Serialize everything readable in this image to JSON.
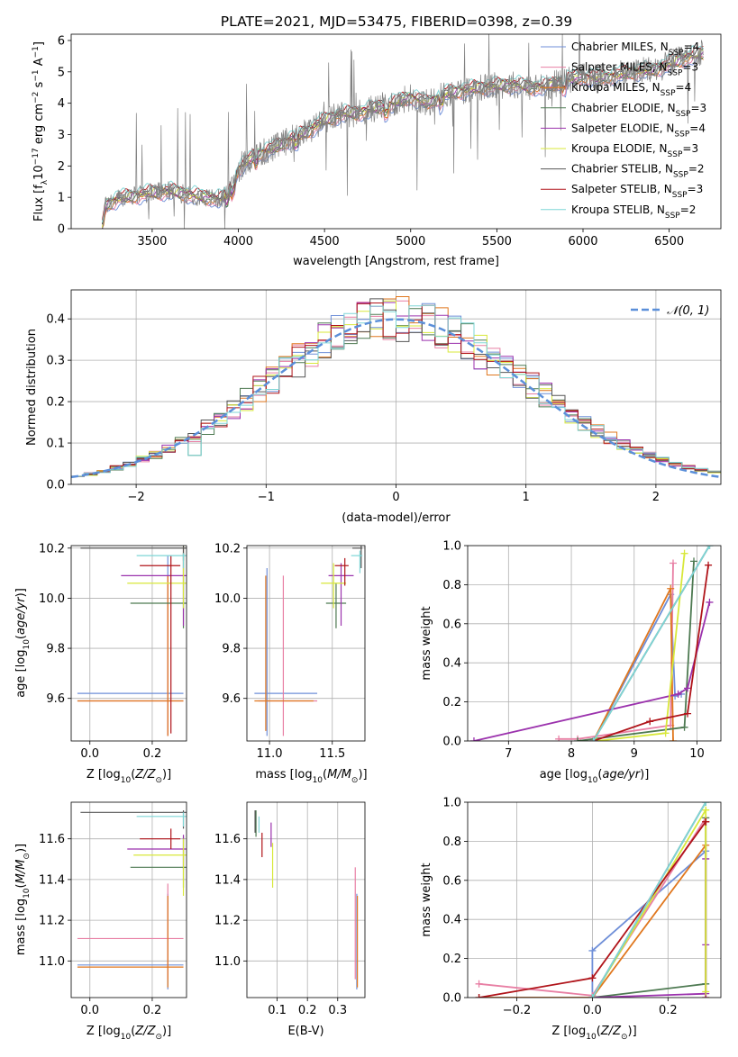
{
  "figure": {
    "title": "PLATE=2021, MJD=53475, FIBERID=0398, z=0.39"
  },
  "palette": {
    "Chabrier MILES": "#6f8fd8",
    "Salpeter MILES": "#e87fa4",
    "Kroupa MILES": "#e0771e",
    "Chabrier ELODIE": "#4e7a52",
    "Salpeter ELODIE": "#9b32ad",
    "Kroupa ELODIE": "#d8e83a",
    "Chabrier STELIB": "#555555",
    "Salpeter STELIB": "#b0141a",
    "Kroupa STELIB": "#7ed6d6"
  },
  "legend": {
    "spectrum": [
      {
        "series": "Chabrier MILES",
        "text": "Chabrier MILES, N",
        "sub": "SSP",
        "tail": "=4"
      },
      {
        "series": "Salpeter MILES",
        "text": "Salpeter MILES, N",
        "sub": "SSP",
        "tail": "=3"
      },
      {
        "series": "Kroupa MILES",
        "text": "Kroupa MILES, N",
        "sub": "SSP",
        "tail": "=4"
      },
      {
        "series": "Chabrier ELODIE",
        "text": "Chabrier ELODIE, N",
        "sub": "SSP",
        "tail": "=3"
      },
      {
        "series": "Salpeter ELODIE",
        "text": "Salpeter ELODIE, N",
        "sub": "SSP",
        "tail": "=4"
      },
      {
        "series": "Kroupa ELODIE",
        "text": "Kroupa ELODIE, N",
        "sub": "SSP",
        "tail": "=3"
      },
      {
        "series": "Chabrier STELIB",
        "text": "Chabrier STELIB, N",
        "sub": "SSP",
        "tail": "=2"
      },
      {
        "series": "Salpeter STELIB",
        "text": "Salpeter STELIB, N",
        "sub": "SSP",
        "tail": "=3"
      },
      {
        "series": "Kroupa STELIB",
        "text": "Kroupa STELIB, N",
        "sub": "SSP",
        "tail": "=2"
      }
    ],
    "hist": "𝒩(0, 1)"
  },
  "chart_data": [
    {
      "id": "spectrum",
      "type": "line",
      "xlabel": "wavelength [Angstrom, rest frame]",
      "ylabel": "Flux [f_λ 10^-17 erg cm^-2 s^-1 A^-1]",
      "xlim": [
        3030,
        6800
      ],
      "ylim": [
        0,
        6.2
      ],
      "xticks": [
        3500,
        4000,
        4500,
        5000,
        5500,
        6000,
        6500
      ],
      "yticks": [
        0,
        1,
        2,
        3,
        4,
        5,
        6
      ],
      "continuum": {
        "x": [
          3210,
          3230,
          3300,
          3400,
          3500,
          3600,
          3700,
          3800,
          3900,
          3950,
          4000,
          4100,
          4200,
          4300,
          4400,
          4500,
          4600,
          4700,
          4800,
          4900,
          5000,
          5100,
          5200,
          5300,
          5400,
          5500,
          5600,
          5700,
          5800,
          5900,
          6000,
          6100,
          6200,
          6300,
          6400,
          6500,
          6600,
          6700
        ],
        "y": [
          0,
          0.75,
          0.95,
          1.05,
          1.15,
          1.2,
          1.1,
          1.0,
          0.95,
          1.2,
          1.9,
          2.35,
          2.55,
          2.85,
          3.1,
          3.45,
          3.65,
          3.7,
          3.85,
          4.0,
          4.2,
          4.0,
          4.3,
          4.4,
          4.5,
          4.55,
          4.6,
          4.5,
          4.55,
          4.75,
          4.85,
          4.8,
          4.9,
          5.0,
          5.05,
          5.25,
          5.45,
          5.6
        ]
      },
      "data_start": 3210
    },
    {
      "id": "residual-hist",
      "type": "line",
      "xlabel": "(data-model)/error",
      "ylabel": "Normed distribution",
      "xlim": [
        -2.5,
        2.5
      ],
      "ylim": [
        0,
        0.47
      ],
      "xticks": [
        -2,
        -1,
        0,
        1,
        2
      ],
      "yticks": [
        0.0,
        0.1,
        0.2,
        0.3,
        0.4
      ],
      "bin_width": 0.1,
      "gaussian": {
        "mean": 0,
        "sigma": 1
      }
    },
    {
      "id": "age-vs-Z",
      "type": "scatter",
      "xlabel": "Z [log10(Z/Z☉)]",
      "ylabel": "age  [log10(age/yr)]",
      "xlim": [
        -0.06,
        0.31
      ],
      "ylim": [
        9.43,
        10.21
      ],
      "xticks": [
        0.0,
        0.2
      ],
      "yticks": [
        9.6,
        9.8,
        10.0,
        10.2
      ],
      "points": [
        {
          "series": "Chabrier MILES",
          "x": 0.25,
          "xerr": [
            0.29,
            0.05
          ],
          "y": 9.62,
          "yerr": [
            0.17,
            0.55
          ]
        },
        {
          "series": "Salpeter MILES",
          "x": 0.25,
          "xerr": [
            0.29,
            0.05
          ],
          "y": 9.59,
          "yerr": [
            0.14,
            0.5
          ]
        },
        {
          "series": "Kroupa MILES",
          "x": 0.25,
          "xerr": [
            0.29,
            0.05
          ],
          "y": 9.59,
          "yerr": [
            0.14,
            0.5
          ]
        },
        {
          "series": "Chabrier ELODIE",
          "x": 0.3,
          "xerr": [
            0.17,
            0.01
          ],
          "y": 9.98,
          "yerr": [
            0.1,
            0.2
          ]
        },
        {
          "series": "Salpeter ELODIE",
          "x": 0.3,
          "xerr": [
            0.2,
            0.01
          ],
          "y": 10.09,
          "yerr": [
            0.2,
            0.11
          ]
        },
        {
          "series": "Kroupa ELODIE",
          "x": 0.3,
          "xerr": [
            0.18,
            0.01
          ],
          "y": 10.06,
          "yerr": [
            0.1,
            0.15
          ]
        },
        {
          "series": "Chabrier STELIB",
          "x": 0.3,
          "xerr": [
            0.33,
            0.01
          ],
          "y": 10.2,
          "yerr": [
            0.05,
            0.01
          ]
        },
        {
          "series": "Salpeter STELIB",
          "x": 0.26,
          "xerr": [
            0.1,
            0.03
          ],
          "y": 10.13,
          "yerr": [
            0.67,
            0.04
          ]
        },
        {
          "series": "Kroupa STELIB",
          "x": 0.3,
          "xerr": [
            0.15,
            0.01
          ],
          "y": 10.17,
          "yerr": [
            0.05,
            0.01
          ]
        }
      ]
    },
    {
      "id": "age-vs-mass",
      "type": "scatter",
      "xlabel": "mass [log10(M/M☉)]",
      "ylabel": "",
      "xlim": [
        10.82,
        11.76
      ],
      "ylim": [
        9.43,
        10.21
      ],
      "xticks": [
        11.0,
        11.5
      ],
      "yticks": [
        9.6,
        9.8,
        10.0,
        10.2
      ],
      "points": [
        {
          "series": "Chabrier MILES",
          "x": 10.98,
          "xerr": [
            0.1,
            0.4
          ],
          "y": 9.62,
          "yerr": [
            0.17,
            0.5
          ]
        },
        {
          "series": "Salpeter MILES",
          "x": 11.11,
          "xerr": [
            0.2,
            0.27
          ],
          "y": 9.59,
          "yerr": [
            0.14,
            0.5
          ]
        },
        {
          "series": "Kroupa MILES",
          "x": 10.97,
          "xerr": [
            0.09,
            0.38
          ],
          "y": 9.59,
          "yerr": [
            0.12,
            0.5
          ]
        },
        {
          "series": "Chabrier ELODIE",
          "x": 11.53,
          "xerr": [
            0.08,
            0.08
          ],
          "y": 9.98,
          "yerr": [
            0.1,
            0.08
          ]
        },
        {
          "series": "Salpeter ELODIE",
          "x": 11.57,
          "xerr": [
            0.1,
            0.1
          ],
          "y": 10.09,
          "yerr": [
            0.2,
            0.05
          ]
        },
        {
          "series": "Kroupa ELODIE",
          "x": 11.51,
          "xerr": [
            0.1,
            0.1
          ],
          "y": 10.06,
          "yerr": [
            0.1,
            0.08
          ]
        },
        {
          "series": "Chabrier STELIB",
          "x": 11.73,
          "xerr": [
            0.07,
            0.01
          ],
          "y": 10.2,
          "yerr": [
            0.08,
            0.01
          ]
        },
        {
          "series": "Salpeter STELIB",
          "x": 11.6,
          "xerr": [
            0.08,
            0.03
          ],
          "y": 10.13,
          "yerr": [
            0.08,
            0.03
          ]
        },
        {
          "series": "Kroupa STELIB",
          "x": 11.72,
          "xerr": [
            0.07,
            0.02
          ],
          "y": 10.17,
          "yerr": [
            0.07,
            0.02
          ]
        }
      ]
    },
    {
      "id": "mass-weight-vs-age",
      "type": "line",
      "xlabel": "age  [log10(age/yr)]",
      "ylabel": "mass weight",
      "xlim": [
        6.35,
        10.38
      ],
      "ylim": [
        0,
        1
      ],
      "xticks": [
        7,
        8,
        9,
        10
      ],
      "yticks": [
        0.0,
        0.2,
        0.4,
        0.6,
        0.8,
        1.0
      ],
      "series": [
        {
          "name": "Chabrier MILES",
          "x": [
            8.35,
            9.58,
            9.65,
            9.75
          ],
          "y": [
            0.0,
            0.75,
            0.23,
            0.24
          ]
        },
        {
          "name": "Salpeter MILES",
          "x": [
            7.8,
            8.1,
            9.58,
            9.62
          ],
          "y": [
            0.01,
            0.01,
            0.08,
            0.91
          ]
        },
        {
          "name": "Kroupa MILES",
          "x": [
            8.35,
            9.58,
            9.62
          ],
          "y": [
            0.0,
            0.78,
            0.0
          ]
        },
        {
          "name": "Chabrier ELODIE",
          "x": [
            8.1,
            9.8,
            9.95
          ],
          "y": [
            0.0,
            0.07,
            0.92
          ]
        },
        {
          "name": "Salpeter ELODIE",
          "x": [
            6.45,
            9.7,
            9.85,
            10.2
          ],
          "y": [
            0.0,
            0.24,
            0.27,
            0.71
          ]
        },
        {
          "name": "Kroupa ELODIE",
          "x": [
            8.4,
            9.5,
            9.8
          ],
          "y": [
            0.0,
            0.04,
            0.96
          ]
        },
        {
          "name": "Chabrier STELIB",
          "x": [
            8.35,
            10.2
          ],
          "y": [
            0.0,
            1.0
          ]
        },
        {
          "name": "Salpeter STELIB",
          "x": [
            8.35,
            9.25,
            9.85,
            10.18
          ],
          "y": [
            0.0,
            0.1,
            0.14,
            0.9
          ]
        },
        {
          "name": "Kroupa STELIB",
          "x": [
            8.35,
            10.2
          ],
          "y": [
            0.0,
            1.0
          ]
        }
      ]
    },
    {
      "id": "mass-vs-Z",
      "type": "scatter",
      "xlabel": "Z [log10(Z/Z☉)]",
      "ylabel": "mass [log10(M/M☉)]",
      "xlim": [
        -0.06,
        0.31
      ],
      "ylim": [
        10.82,
        11.78
      ],
      "xticks": [
        0.0,
        0.2
      ],
      "yticks": [
        11.0,
        11.2,
        11.4,
        11.6
      ],
      "points": [
        {
          "series": "Chabrier MILES",
          "x": 0.25,
          "xerr": [
            0.29,
            0.05
          ],
          "y": 10.98,
          "yerr": [
            0.12,
            0.35
          ]
        },
        {
          "series": "Salpeter MILES",
          "x": 0.25,
          "xerr": [
            0.29,
            0.05
          ],
          "y": 11.11,
          "yerr": [
            0.2,
            0.27
          ]
        },
        {
          "series": "Kroupa MILES",
          "x": 0.25,
          "xerr": [
            0.29,
            0.05
          ],
          "y": 10.97,
          "yerr": [
            0.1,
            0.35
          ]
        },
        {
          "series": "Chabrier ELODIE",
          "x": 0.3,
          "xerr": [
            0.17,
            0.01
          ],
          "y": 11.46,
          "yerr": [
            0.1,
            0.15
          ]
        },
        {
          "series": "Salpeter ELODIE",
          "x": 0.3,
          "xerr": [
            0.18,
            0.01
          ],
          "y": 11.55,
          "yerr": [
            0.1,
            0.07
          ]
        },
        {
          "series": "Kroupa ELODIE",
          "x": 0.3,
          "xerr": [
            0.16,
            0.01
          ],
          "y": 11.52,
          "yerr": [
            0.2,
            0.08
          ]
        },
        {
          "series": "Chabrier STELIB",
          "x": 0.3,
          "xerr": [
            0.33,
            0.01
          ],
          "y": 11.73,
          "yerr": [
            0.08,
            0.01
          ]
        },
        {
          "series": "Salpeter STELIB",
          "x": 0.26,
          "xerr": [
            0.1,
            0.03
          ],
          "y": 11.6,
          "yerr": [
            0.05,
            0.05
          ]
        },
        {
          "series": "Kroupa STELIB",
          "x": 0.3,
          "xerr": [
            0.15,
            0.01
          ],
          "y": 11.71,
          "yerr": [
            0.05,
            0.02
          ]
        }
      ]
    },
    {
      "id": "mass-vs-ebv",
      "type": "scatter",
      "xlabel": "E(B-V)",
      "ylabel": "",
      "xlim": [
        0.0,
        0.39
      ],
      "ylim": [
        10.82,
        11.78
      ],
      "xticks": [
        0.1,
        0.2,
        0.3
      ],
      "yticks": [
        11.0,
        11.2,
        11.4,
        11.6
      ],
      "points": [
        {
          "series": "Chabrier MILES",
          "x": 0.363,
          "xerr": [
            0,
            0
          ],
          "y": 10.98,
          "yerr": [
            0.12,
            0.35
          ]
        },
        {
          "series": "Salpeter MILES",
          "x": 0.358,
          "xerr": [
            0,
            0
          ],
          "y": 11.11,
          "yerr": [
            0.2,
            0.35
          ]
        },
        {
          "series": "Kroupa MILES",
          "x": 0.365,
          "xerr": [
            0,
            0
          ],
          "y": 10.97,
          "yerr": [
            0.1,
            0.35
          ]
        },
        {
          "series": "Chabrier ELODIE",
          "x": 0.03,
          "xerr": [
            0,
            0
          ],
          "y": 11.66,
          "yerr": [
            0.05,
            0.08
          ]
        },
        {
          "series": "Salpeter ELODIE",
          "x": 0.08,
          "xerr": [
            0,
            0
          ],
          "y": 11.61,
          "yerr": [
            0.05,
            0.07
          ]
        },
        {
          "series": "Kroupa ELODIE",
          "x": 0.085,
          "xerr": [
            0,
            0
          ],
          "y": 11.5,
          "yerr": [
            0.14,
            0.08
          ]
        },
        {
          "series": "Chabrier STELIB",
          "x": 0.027,
          "xerr": [
            0,
            0
          ],
          "y": 11.71,
          "yerr": [
            0.08,
            0.03
          ]
        },
        {
          "series": "Salpeter STELIB",
          "x": 0.05,
          "xerr": [
            0,
            0
          ],
          "y": 11.58,
          "yerr": [
            0.07,
            0.05
          ]
        },
        {
          "series": "Kroupa STELIB",
          "x": 0.04,
          "xerr": [
            0,
            0
          ],
          "y": 11.68,
          "yerr": [
            0.05,
            0.03
          ]
        }
      ]
    },
    {
      "id": "mass-weight-vs-Z",
      "type": "line",
      "xlabel": "Z [log10(Z/Z☉)]",
      "ylabel": "mass weight",
      "xlim": [
        -0.33,
        0.34
      ],
      "ylim": [
        0,
        1
      ],
      "xticks": [
        -0.2,
        0.0,
        0.2
      ],
      "yticks": [
        0.0,
        0.2,
        0.4,
        0.6,
        0.8,
        1.0
      ],
      "series": [
        {
          "name": "Chabrier MILES",
          "x": [
            -0.3,
            0.0,
            0.0,
            0.3,
            0.3
          ],
          "y": [
            0.0,
            0.0,
            0.24,
            0.75,
            0.0
          ]
        },
        {
          "name": "Salpeter MILES",
          "x": [
            -0.3,
            0.0,
            0.3,
            0.3
          ],
          "y": [
            0.07,
            0.01,
            0.92,
            0.0
          ]
        },
        {
          "name": "Kroupa MILES",
          "x": [
            -0.3,
            0.0,
            0.3,
            0.3
          ],
          "y": [
            0.0,
            0.0,
            0.78,
            0.0
          ]
        },
        {
          "name": "Chabrier ELODIE",
          "x": [
            0.0,
            0.3,
            0.3
          ],
          "y": [
            0.0,
            0.07,
            0.92
          ]
        },
        {
          "name": "Salpeter ELODIE",
          "x": [
            0.0,
            0.3,
            0.3,
            0.3
          ],
          "y": [
            0.0,
            0.02,
            0.27,
            0.71
          ]
        },
        {
          "name": "Kroupa ELODIE",
          "x": [
            0.0,
            0.3,
            0.3
          ],
          "y": [
            0.0,
            0.96,
            0.03
          ]
        },
        {
          "name": "Chabrier STELIB",
          "x": [
            0.0,
            0.3
          ],
          "y": [
            0.0,
            1.0
          ]
        },
        {
          "name": "Salpeter STELIB",
          "x": [
            -0.3,
            0.0,
            0.3,
            0.3
          ],
          "y": [
            0.0,
            0.1,
            0.9,
            0.9
          ]
        },
        {
          "name": "Kroupa STELIB",
          "x": [
            0.0,
            0.3
          ],
          "y": [
            0.0,
            1.0
          ]
        }
      ]
    }
  ]
}
